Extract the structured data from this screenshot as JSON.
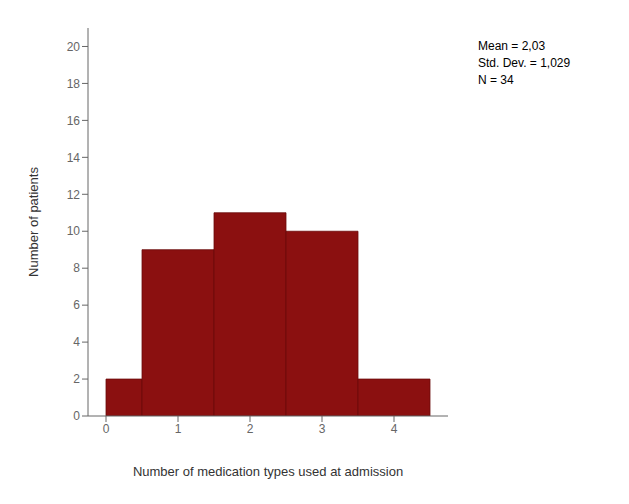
{
  "chart_data": {
    "type": "histogram",
    "bins": [
      0,
      0.5,
      1.5,
      2.5,
      3.5,
      4.5
    ],
    "values": [
      2,
      9,
      11,
      10,
      2
    ],
    "color": "#8B1010",
    "xlabel": "Number of medication types used at admission",
    "ylabel": "Number of patients",
    "xlim": [
      -0.25,
      4.75
    ],
    "xticks": [
      0,
      1,
      2,
      3,
      4
    ],
    "ylim": [
      0,
      21
    ],
    "yticks": [
      0,
      2,
      4,
      6,
      8,
      10,
      12,
      14,
      16,
      18,
      20
    ],
    "grid": false,
    "annotations": [
      "Mean = 2,03",
      "Std. Dev. = 1,029",
      "N = 34"
    ]
  }
}
